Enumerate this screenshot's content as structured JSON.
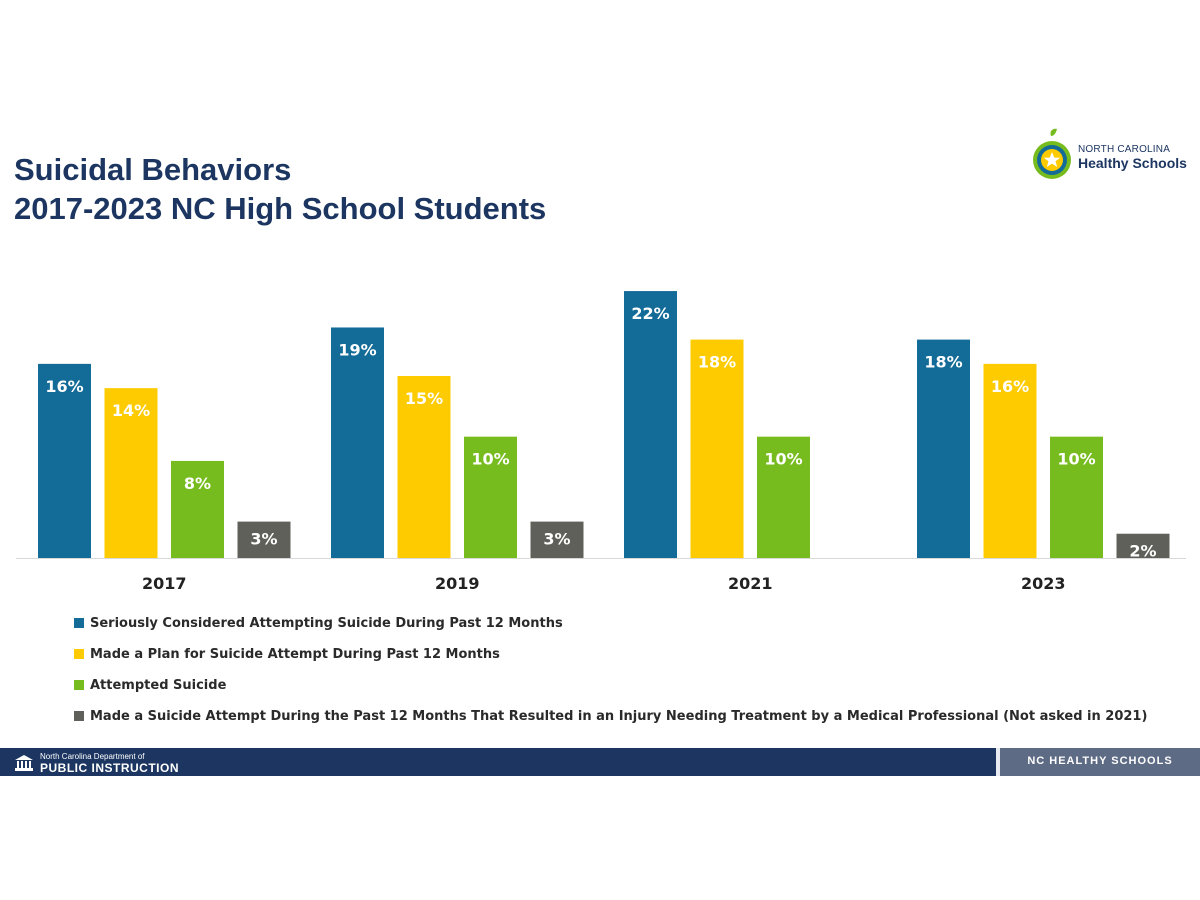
{
  "title": {
    "line1": "Suicidal Behaviors",
    "line2": "2017-2023 NC High School Students"
  },
  "logo": {
    "line1": "NORTH CAROLINA",
    "line2": "Healthy Schools",
    "icon": "apple-star-icon"
  },
  "footer": {
    "department": "North Carolina Department of",
    "public_instruction": "PUBLIC INSTRUCTION",
    "brand": "NC HEALTHY SCHOOLS",
    "emblem_icon": "state-capitol-icon"
  },
  "colors": {
    "title": "#1c3661",
    "footer": "#1c3661",
    "footer_brand_bg": "#5e6b85",
    "considered": "#136b97",
    "plan": "#fecb00",
    "attempted": "#77bc1f",
    "injury": "#60605b"
  },
  "chart_data": {
    "type": "bar",
    "categories": [
      "2017",
      "2019",
      "2021",
      "2023"
    ],
    "series": [
      {
        "name": "Seriously Considered Attempting Suicide During Past 12 Months",
        "values": [
          16,
          19,
          22,
          18
        ],
        "labels": [
          "16%",
          "19%",
          "22%",
          "18%"
        ],
        "color": "#136b97"
      },
      {
        "name": "Made a Plan for Suicide Attempt During Past 12 Months",
        "values": [
          14,
          15,
          18,
          16
        ],
        "labels": [
          "14%",
          "15%",
          "18%",
          "16%"
        ],
        "color": "#fecb00"
      },
      {
        "name": "Attempted Suicide",
        "values": [
          8,
          10,
          10,
          10
        ],
        "labels": [
          "8%",
          "10%",
          "10%",
          "10%"
        ],
        "color": "#77bc1f"
      },
      {
        "name": "Made a Suicide Attempt During the Past 12 Months That Resulted in an Injury Needing Treatment by a Medical Professional (Not asked in 2021)",
        "values": [
          3,
          3,
          null,
          2
        ],
        "labels": [
          "3%",
          "3%",
          "",
          "2%"
        ],
        "color": "#60605b"
      }
    ],
    "ylim": [
      0,
      22.5
    ],
    "unit": "%",
    "legend_position": "bottom",
    "grid": false,
    "xlabel": "",
    "ylabel": ""
  }
}
